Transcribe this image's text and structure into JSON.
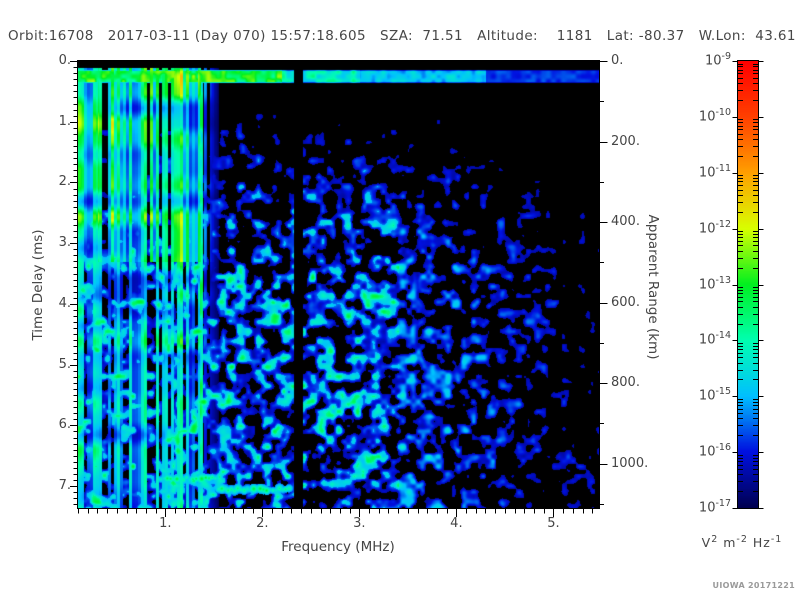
{
  "header": {
    "text": "Orbit:16708   2017-03-11 (Day 070) 15:57:18.605   SZA:  71.51   Altitude:    1181   Lat: -80.37   W.Lon:  43.61"
  },
  "watermark": "UIOWA 20171221",
  "chart_data": {
    "type": "heatmap",
    "title": "",
    "xlabel": "Frequency (MHz)",
    "ylabel_left": "Time Delay (ms)",
    "ylabel_right": "Apparent Range (km)",
    "xlim": [
      0.1,
      5.47
    ],
    "ylim_ms": [
      0,
      7.36
    ],
    "right_lim_km": [
      0,
      1110
    ],
    "x_major_ticks": [
      {
        "v": 1,
        "label": "1."
      },
      {
        "v": 2,
        "label": "2."
      },
      {
        "v": 3,
        "label": "3."
      },
      {
        "v": 4,
        "label": "4."
      },
      {
        "v": 5,
        "label": "5."
      }
    ],
    "x_minor_step": 0.1,
    "y_major_ticks": [
      {
        "v": 0,
        "label": "0."
      },
      {
        "v": 1,
        "label": "1."
      },
      {
        "v": 2,
        "label": "2."
      },
      {
        "v": 3,
        "label": "3."
      },
      {
        "v": 4,
        "label": "4."
      },
      {
        "v": 5,
        "label": "5."
      },
      {
        "v": 6,
        "label": "6."
      },
      {
        "v": 7,
        "label": "7."
      }
    ],
    "y_minor_step": 0.1,
    "right_major_ticks": [
      {
        "v": 0,
        "label": "0."
      },
      {
        "v": 200,
        "label": "200."
      },
      {
        "v": 400,
        "label": "400."
      },
      {
        "v": 600,
        "label": "600."
      },
      {
        "v": 800,
        "label": "800."
      },
      {
        "v": 1000,
        "label": "1000."
      }
    ],
    "right_minor_step": 100,
    "colorbar": {
      "scale": "log10",
      "exponents": [
        -9,
        -10,
        -11,
        -12,
        -13,
        -14,
        -15,
        -16,
        -17
      ],
      "unit_parts": [
        {
          "base": "V",
          "sup": "2"
        },
        {
          "base": "m",
          "sup": "-2"
        },
        {
          "base": "Hz",
          "sup": "-1"
        }
      ],
      "colormap_stops": [
        [
          0.0,
          "#000050"
        ],
        [
          0.125,
          "#0010E0"
        ],
        [
          0.25,
          "#00C0FF"
        ],
        [
          0.375,
          "#00FFB0"
        ],
        [
          0.5,
          "#00F020"
        ],
        [
          0.625,
          "#D8FF00"
        ],
        [
          0.75,
          "#FFA000"
        ],
        [
          0.875,
          "#FF4000"
        ],
        [
          1.0,
          "#FF0000"
        ]
      ]
    },
    "spectrogram": {
      "seed": 20171221,
      "noise_threshold": 0.42,
      "stripe_region_max_mhz": 1.55,
      "stripe_fade_start_mhz": 1.33,
      "bright_stripe_mhz": 1.37,
      "dark_line_mhz": [
        2.33,
        2.41
      ],
      "top_black_ms": 0.15,
      "top_band_ms": [
        0.15,
        0.34
      ],
      "noise_start_ms": 0.42,
      "upper_left_dense_max_ms": 3.3,
      "echo_trace": {
        "f_start_mhz": 0.95,
        "f_step_mhz": 1.52,
        "f_end_mhz": 2.27,
        "delay_a_ms": 6.87,
        "delay_b_ms": 7.05
      }
    }
  }
}
